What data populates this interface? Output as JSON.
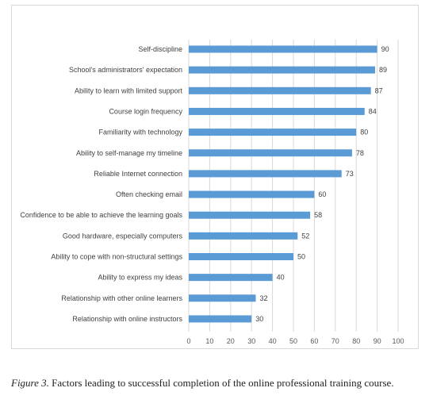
{
  "caption": {
    "label": "Figure 3.",
    "text": " Factors leading to successful completion of the online professional training course."
  },
  "colors": {
    "bar": "#5b9bd5",
    "gridline": "#d9d9d9",
    "axis_text": "#595959"
  },
  "chart_data": {
    "type": "bar",
    "orientation": "horizontal",
    "categories": [
      "Self-discipline",
      "School's administrators' expectation",
      "Ability to learn with limited support",
      "Course login frequency",
      "Familiarity with technology",
      "Ability to self-manage my timeline",
      "Reliable Internet connection",
      "Often checking email",
      "Confidence to be able to achieve the learning goals",
      "Good hardware, especially computers",
      "Ability to cope with non-structural settings",
      "Ability to express my ideas",
      "Relationship with other online learners",
      "Relationship with online instructors"
    ],
    "values": [
      90,
      89,
      87,
      84,
      80,
      78,
      73,
      60,
      58,
      52,
      50,
      40,
      32,
      30
    ],
    "xlim": [
      0,
      100
    ],
    "xticks": [
      0,
      10,
      20,
      30,
      40,
      50,
      60,
      70,
      80,
      90,
      100
    ],
    "grid": "vertical",
    "data_labels": true,
    "title": "",
    "xlabel": "",
    "ylabel": ""
  }
}
